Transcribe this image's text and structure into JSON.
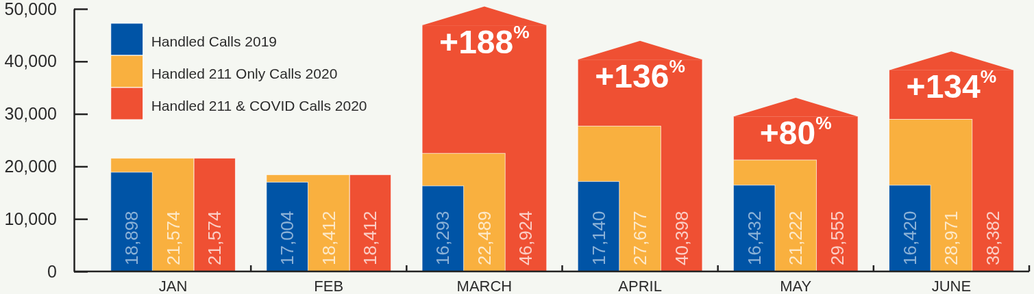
{
  "chart_data": {
    "type": "bar",
    "categories": [
      "JAN",
      "FEB",
      "MARCH",
      "APRIL",
      "MAY",
      "JUNE"
    ],
    "series": [
      {
        "name": "Handled Calls 2019",
        "color": "#0054a6",
        "values": [
          18898,
          17004,
          16293,
          17140,
          16432,
          16420
        ],
        "value_labels": [
          "18,898",
          "17,004",
          "16,293",
          "17,140",
          "16,432",
          "16,420"
        ]
      },
      {
        "name": "Handled 211 Only Calls 2020",
        "color": "#f9b03f",
        "values": [
          21574,
          18412,
          22489,
          27677,
          21222,
          28971
        ],
        "value_labels": [
          "21,574",
          "18,412",
          "22,489",
          "27,677",
          "21,222",
          "28,971"
        ]
      },
      {
        "name": "Handled 211 & COVID Calls 2020",
        "color": "#ef5033",
        "values": [
          21574,
          18412,
          46924,
          40398,
          29555,
          38382
        ],
        "value_labels": [
          "21,574",
          "18,412",
          "46,924",
          "40,398",
          "29,555",
          "38,382"
        ]
      }
    ],
    "ylim": [
      0,
      50000
    ],
    "yticks": [
      0,
      {
        "value": 10000,
        "label": "10,000"
      },
      {
        "value": 20000,
        "label": "20,000"
      },
      {
        "value": 30000,
        "label": "30,000"
      },
      {
        "value": 40000,
        "label": "40,000"
      },
      {
        "value": 50000,
        "label": "50,000"
      }
    ],
    "annotations": [
      {
        "text": "+188$^{%}$",
        "x": "MARCH",
        "y": 46924
      },
      {
        "text": "+136$^{%}$",
        "x": "APRIL",
        "y": 40398
      },
      {
        "text": "+80$^{%}$",
        "x": "MAY",
        "y": 29555
      },
      {
        "text": "+134$^{%}$",
        "x": "JUNE",
        "y": 38382
      }
    ],
    "legend": "top left",
    "grid": false
  }
}
